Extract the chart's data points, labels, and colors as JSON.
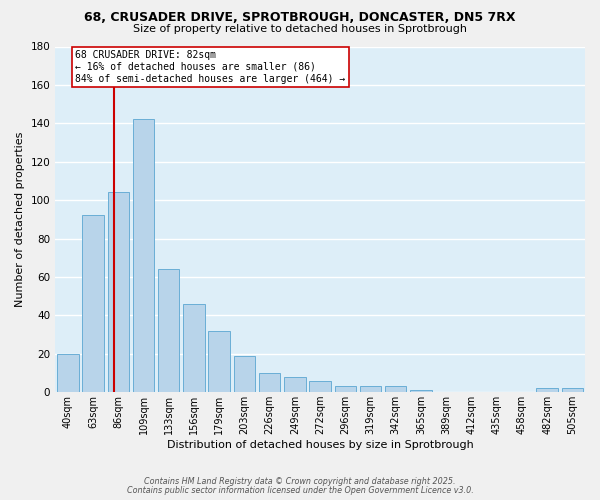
{
  "title_line1": "68, CRUSADER DRIVE, SPROTBROUGH, DONCASTER, DN5 7RX",
  "title_line2": "Size of property relative to detached houses in Sprotbrough",
  "xlabel": "Distribution of detached houses by size in Sprotbrough",
  "ylabel": "Number of detached properties",
  "bar_labels": [
    "40sqm",
    "63sqm",
    "86sqm",
    "109sqm",
    "133sqm",
    "156sqm",
    "179sqm",
    "203sqm",
    "226sqm",
    "249sqm",
    "272sqm",
    "296sqm",
    "319sqm",
    "342sqm",
    "365sqm",
    "389sqm",
    "412sqm",
    "435sqm",
    "458sqm",
    "482sqm",
    "505sqm"
  ],
  "bar_values": [
    20,
    92,
    104,
    142,
    64,
    46,
    32,
    19,
    10,
    8,
    6,
    3,
    3,
    3,
    1,
    0,
    0,
    0,
    0,
    2,
    2
  ],
  "bar_color": "#b8d4ea",
  "bar_edge_color": "#6aaed6",
  "background_color": "#ddeef8",
  "grid_color": "#ffffff",
  "fig_background": "#f0f0f0",
  "ylim": [
    0,
    180
  ],
  "yticks": [
    0,
    20,
    40,
    60,
    80,
    100,
    120,
    140,
    160,
    180
  ],
  "property_line_color": "#cc0000",
  "annotation_text_line1": "68 CRUSADER DRIVE: 82sqm",
  "annotation_text_line2": "← 16% of detached houses are smaller (86)",
  "annotation_text_line3": "84% of semi-detached houses are larger (464) →",
  "footer_line1": "Contains HM Land Registry data © Crown copyright and database right 2025.",
  "footer_line2": "Contains public sector information licensed under the Open Government Licence v3.0."
}
